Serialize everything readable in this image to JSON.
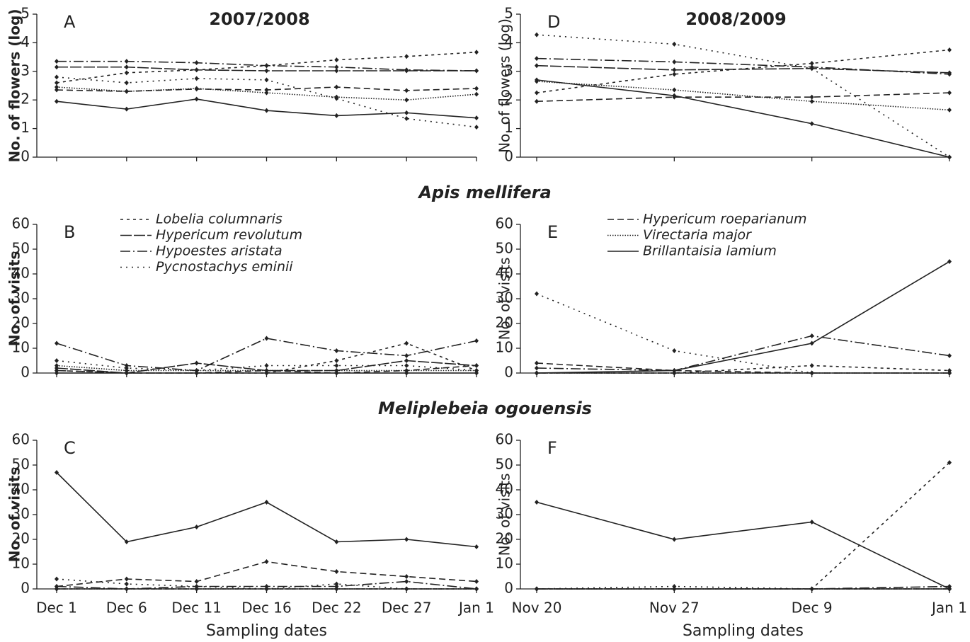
{
  "color": "#222222",
  "legend": [
    {
      "name": "Lobelia columnaris",
      "dash": "4,5"
    },
    {
      "name": "Hypericum revolutum",
      "dash": "16,3"
    },
    {
      "name": "Hypoestes aristata",
      "dash": "14,4,2,4"
    },
    {
      "name": "Pycnostachys eminii",
      "dash": "2,6"
    },
    {
      "name": "Hypericum roeparianum",
      "dash": "9,5"
    },
    {
      "name": "Virectaria major",
      "dash": "1.5,2"
    },
    {
      "name": "Brillantaisia lamium",
      "dash": "none"
    }
  ],
  "sections": [
    "Apis mellifera",
    "Meliplebeia ogouensis"
  ],
  "chart_data": [
    {
      "type": "line",
      "panel": "A",
      "title": "2007/2008",
      "y_label": "No. of flowers (log)",
      "ylim": [
        0,
        5
      ],
      "yticks": [
        0,
        1,
        2,
        3,
        4,
        5
      ],
      "series": [
        {
          "values": [
            2.6,
            2.95,
            3.05,
            3.2,
            3.4,
            3.52,
            3.67
          ]
        },
        {
          "values": [
            3.15,
            3.15,
            3.05,
            3.02,
            3.02,
            3.02,
            3.02
          ]
        },
        {
          "values": [
            3.35,
            3.35,
            3.3,
            3.2,
            3.15,
            3.05,
            3.02
          ]
        },
        {
          "values": [
            2.8,
            2.6,
            2.75,
            2.7,
            2.05,
            1.35,
            1.05
          ]
        },
        {
          "values": [
            2.35,
            2.3,
            2.38,
            2.35,
            2.45,
            2.33,
            2.4
          ]
        },
        {
          "values": [
            2.45,
            2.3,
            2.4,
            2.25,
            2.1,
            2.0,
            2.2
          ]
        },
        {
          "values": [
            1.95,
            1.68,
            2.03,
            1.63,
            1.45,
            1.55,
            1.37
          ]
        }
      ]
    },
    {
      "type": "line",
      "panel": "D",
      "title": "2008/2009",
      "y_label": "No. of flowers (log)",
      "ylim": [
        0,
        5
      ],
      "yticks": [
        0,
        1,
        2,
        3,
        4,
        5
      ],
      "series": [
        {
          "values": [
            2.25,
            2.9,
            3.28,
            3.75
          ]
        },
        {
          "values": [
            3.2,
            3.05,
            3.1,
            2.95
          ]
        },
        {
          "values": [
            3.45,
            3.33,
            3.15,
            2.9
          ]
        },
        {
          "values": [
            4.28,
            3.95,
            3.1,
            0
          ]
        },
        {
          "values": [
            1.95,
            2.1,
            2.1,
            2.25
          ]
        },
        {
          "values": [
            2.65,
            2.35,
            1.95,
            1.65
          ]
        },
        {
          "values": [
            2.7,
            2.15,
            1.17,
            0
          ]
        }
      ]
    },
    {
      "type": "line",
      "panel": "B",
      "y_label": "No. of visits",
      "ylim": [
        0,
        60
      ],
      "yticks": [
        0,
        10,
        20,
        30,
        40,
        50,
        60
      ],
      "series": [
        {
          "values": [
            1,
            0,
            0,
            0,
            5,
            12,
            1
          ]
        },
        {
          "values": [
            2,
            0,
            4,
            1,
            1,
            5,
            3
          ]
        },
        {
          "values": [
            12,
            3,
            1,
            14,
            9,
            7,
            13
          ]
        },
        {
          "values": [
            5,
            2,
            1,
            3,
            3,
            3,
            1
          ]
        },
        {
          "values": [
            1,
            0,
            0,
            1,
            0,
            1,
            3
          ]
        },
        {
          "values": [
            3,
            1,
            1,
            1,
            1,
            1,
            1
          ]
        },
        {
          "values": [
            0,
            0,
            0,
            0,
            0,
            0,
            0
          ]
        }
      ]
    },
    {
      "type": "line",
      "panel": "E",
      "y_label": "No. of visits",
      "ylim": [
        0,
        60
      ],
      "yticks": [
        0,
        10,
        20,
        30,
        40,
        50,
        60
      ],
      "series": [
        {
          "values": [
            0,
            0,
            3,
            1
          ]
        },
        {
          "values": [
            0,
            0,
            0,
            0
          ]
        },
        {
          "values": [
            2,
            1,
            15,
            7
          ]
        },
        {
          "values": [
            32,
            9,
            0,
            0
          ]
        },
        {
          "values": [
            4,
            1,
            0,
            0
          ]
        },
        {
          "values": [
            0,
            0,
            0,
            0
          ]
        },
        {
          "values": [
            0,
            1,
            12,
            45
          ]
        }
      ]
    },
    {
      "type": "line",
      "panel": "C",
      "y_label": "No. of visits",
      "x_label": "Sampling dates",
      "ylim": [
        0,
        60
      ],
      "yticks": [
        0,
        10,
        20,
        30,
        40,
        50,
        60
      ],
      "categories": [
        "Dec 1",
        "Dec 6",
        "Dec 11",
        "Dec 16",
        "Dec 22",
        "Dec 27",
        "Jan 1"
      ],
      "series": [
        {
          "values": [
            0,
            0,
            0,
            0,
            0,
            0,
            0
          ]
        },
        {
          "values": [
            0,
            0,
            0,
            0,
            0,
            0,
            0
          ]
        },
        {
          "values": [
            1,
            0,
            1,
            1,
            1,
            3,
            0
          ]
        },
        {
          "values": [
            4,
            2,
            1,
            0,
            2,
            0,
            0
          ]
        },
        {
          "values": [
            1,
            4,
            3,
            11,
            7,
            5,
            3
          ]
        },
        {
          "values": [
            0,
            0,
            0,
            0,
            0,
            0,
            0
          ]
        },
        {
          "values": [
            47,
            19,
            25,
            35,
            19,
            20,
            17
          ]
        }
      ]
    },
    {
      "type": "line",
      "panel": "F",
      "y_label": "No. of visits",
      "x_label": "Sampling dates",
      "ylim": [
        0,
        60
      ],
      "yticks": [
        0,
        10,
        20,
        30,
        40,
        50,
        60
      ],
      "categories": [
        "Nov 20",
        "Nov 27",
        "Dec 9",
        "Jan 1"
      ],
      "series": [
        {
          "values": [
            0,
            0,
            0,
            51
          ]
        },
        {
          "values": [
            0,
            0,
            0,
            0
          ]
        },
        {
          "values": [
            0,
            0,
            0,
            1
          ]
        },
        {
          "values": [
            0,
            1,
            0,
            0
          ]
        },
        {
          "values": [
            0,
            0,
            0,
            0
          ]
        },
        {
          "values": [
            0,
            0,
            0,
            0
          ]
        },
        {
          "values": [
            35,
            20,
            27,
            0
          ]
        }
      ]
    }
  ]
}
